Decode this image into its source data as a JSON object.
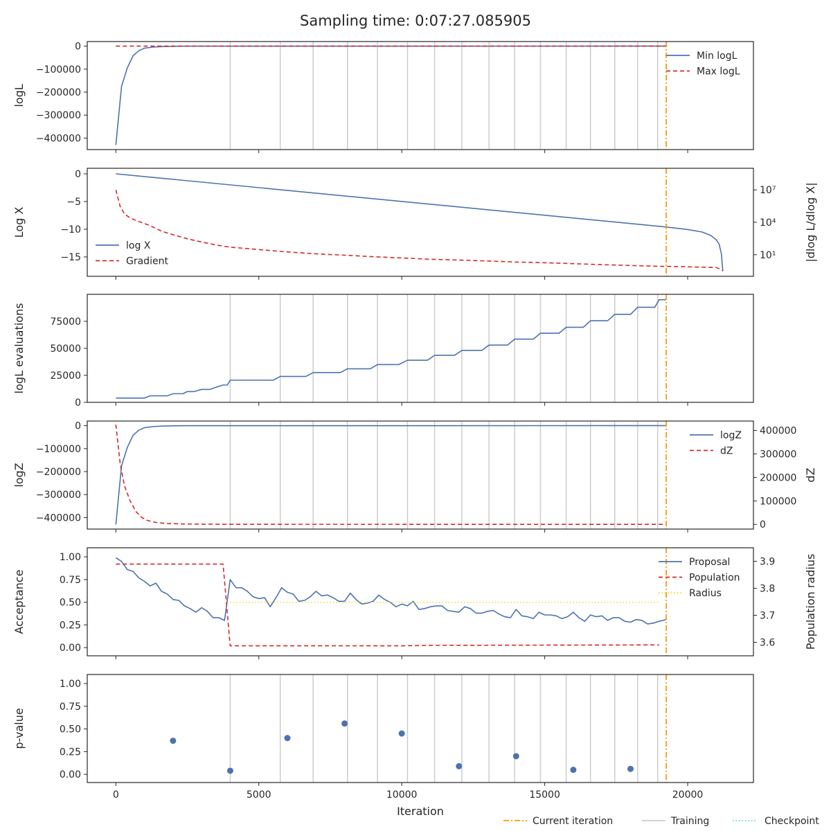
{
  "title": "Sampling time: 0:07:27.085905",
  "xlabel": "Iteration",
  "xticks": [
    0,
    5000,
    10000,
    15000,
    20000
  ],
  "xlim": [
    -1000,
    22300
  ],
  "colors": {
    "blue": "#4c72b0",
    "red": "#d62728",
    "orange": "#ff9900",
    "gray": "#cccccc",
    "cyan": "#5fd3e6",
    "yellow": "#f2d21b",
    "axis": "#262626"
  },
  "legend_bottom": {
    "current": "Current iteration",
    "training": "Training",
    "checkpoint": "Checkpoint"
  },
  "chart_data": [
    {
      "type": "line",
      "ylabel": "logL",
      "ylim": [
        -450000,
        20000
      ],
      "yticks": [
        0,
        -100000,
        -200000,
        -300000,
        -400000
      ],
      "ytick_labels": [
        "0",
        "−100000",
        "−200000",
        "−300000",
        "−400000"
      ],
      "training_lines": [
        4000,
        5750,
        6900,
        8100,
        9150,
        10200,
        11150,
        12100,
        13050,
        13950,
        14850,
        15750,
        16600,
        17450,
        18250,
        18950
      ],
      "current_iteration": 19250,
      "legend": [
        "Min logL",
        "Max logL"
      ],
      "legend_position": "top-right",
      "series": [
        {
          "name": "Min logL",
          "style": "solid",
          "x": [
            0,
            200,
            400,
            600,
            800,
            1000,
            1300,
            1600,
            2000,
            2500,
            3000,
            19250
          ],
          "y": [
            -430000,
            -175000,
            -95000,
            -42000,
            -20000,
            -9000,
            -4000,
            -2000,
            -800,
            -300,
            -100,
            0
          ]
        },
        {
          "name": "Max logL",
          "style": "dashed",
          "x": [
            0,
            19250
          ],
          "y": [
            0,
            0
          ]
        }
      ]
    },
    {
      "type": "line",
      "ylabel": "Log X",
      "ylim": [
        -18.5,
        1
      ],
      "yticks": [
        0,
        -5,
        -10,
        -15
      ],
      "ytick_labels": [
        "0",
        "−5",
        "−10",
        "−15"
      ],
      "right_ylabel": "|dlog L/dlog X|",
      "right_ylog": true,
      "right_ylim": [
        0.1,
        1000000000
      ],
      "right_yticks": [
        10,
        10000,
        10000000
      ],
      "right_ytick_labels": [
        "10¹",
        "10⁴",
        "10⁷"
      ],
      "current_iteration": 19250,
      "legend": [
        "log X",
        "Gradient"
      ],
      "legend_position": "lower-left",
      "series": [
        {
          "name": "log X",
          "style": "solid",
          "axis": "left",
          "x": [
            0,
            19250,
            20000,
            20500,
            20800,
            21000,
            21100,
            21180,
            21230
          ],
          "y": [
            0,
            -9.6,
            -10.05,
            -10.5,
            -11.1,
            -11.9,
            -12.7,
            -14.5,
            -17.6
          ]
        },
        {
          "name": "Gradient",
          "style": "dashed",
          "axis": "right",
          "x": [
            0,
            150,
            300,
            500,
            800,
            1200,
            1600,
            2000,
            2500,
            3000,
            3500,
            4000,
            5000,
            6000,
            7000,
            8000,
            9000,
            10000,
            11000,
            12000,
            13000,
            14000,
            15000,
            16000,
            17000,
            18000,
            19000,
            20000,
            21000,
            21230
          ],
          "y": [
            10000000,
            300000,
            60000,
            25000,
            12000,
            5000,
            1500,
            700,
            300,
            150,
            80,
            50,
            30,
            18,
            12,
            9,
            6.5,
            5,
            3.8,
            3.2,
            2.6,
            2.1,
            1.8,
            1.5,
            1.2,
            1.0,
            0.85,
            0.75,
            0.65,
            0.35
          ]
        }
      ]
    },
    {
      "type": "line",
      "ylabel": "logL evaluations",
      "ylim": [
        0,
        100000
      ],
      "yticks": [
        0,
        25000,
        50000,
        75000
      ],
      "ytick_labels": [
        "0",
        "25000",
        "50000",
        "75000"
      ],
      "training_lines": [
        4000,
        5750,
        6900,
        8100,
        9150,
        10200,
        11150,
        12100,
        13050,
        13950,
        14850,
        15750,
        16600,
        17450,
        18250,
        18950
      ],
      "current_iteration": 19250,
      "series": [
        {
          "name": "",
          "style": "solid",
          "x": [
            0,
            1000,
            1200,
            1800,
            2000,
            2350,
            2500,
            2750,
            3000,
            3300,
            3500,
            3750,
            3900,
            4000,
            5500,
            5750,
            6650,
            6900,
            7850,
            8100,
            8900,
            9150,
            9900,
            10200,
            10900,
            11150,
            11850,
            12100,
            12800,
            13050,
            13700,
            13950,
            14600,
            14850,
            15500,
            15750,
            16350,
            16600,
            17200,
            17450,
            18000,
            18250,
            18850,
            19000,
            19250
          ],
          "y": [
            4000,
            4000,
            6000,
            6000,
            8000,
            8000,
            10000,
            10000,
            12000,
            12000,
            14000,
            16000,
            16000,
            20500,
            20500,
            24000,
            24000,
            27500,
            27500,
            31000,
            31000,
            35000,
            35000,
            39000,
            39000,
            43500,
            43500,
            48000,
            48000,
            53000,
            53000,
            58500,
            58500,
            64000,
            64000,
            69500,
            69500,
            75500,
            75500,
            81500,
            81500,
            88000,
            88000,
            95000,
            95000
          ]
        }
      ]
    },
    {
      "type": "line",
      "ylabel": "logZ",
      "ylim": [
        -450000,
        20000
      ],
      "yticks": [
        0,
        -100000,
        -200000,
        -300000,
        -400000
      ],
      "ytick_labels": [
        "0",
        "−100000",
        "−200000",
        "−300000",
        "−400000"
      ],
      "right_ylabel": "dZ",
      "right_ylim": [
        -20000,
        440000
      ],
      "right_yticks": [
        0,
        100000,
        200000,
        300000,
        400000
      ],
      "right_ytick_labels": [
        "0",
        "100000",
        "200000",
        "300000",
        "400000"
      ],
      "training_lines": [
        4000,
        5750,
        6900,
        8100,
        9150,
        10200,
        11150,
        12100,
        13050,
        13950,
        14850,
        15750,
        16600,
        17450,
        18250,
        18950
      ],
      "current_iteration": 19250,
      "legend": [
        "logZ",
        "dZ"
      ],
      "legend_position": "top-right",
      "series": [
        {
          "name": "logZ",
          "style": "solid",
          "axis": "left",
          "x": [
            0,
            200,
            400,
            600,
            800,
            1000,
            1300,
            1600,
            2000,
            2500,
            3000,
            19250
          ],
          "y": [
            -430000,
            -175000,
            -95000,
            -42000,
            -20000,
            -9000,
            -4000,
            -2000,
            -800,
            -300,
            -100,
            0
          ]
        },
        {
          "name": "dZ",
          "style": "dashed",
          "axis": "right",
          "x": [
            0,
            150,
            300,
            500,
            700,
            900,
            1100,
            1400,
            1800,
            2300,
            3000,
            4000,
            19250
          ],
          "y": [
            425000,
            260000,
            165000,
            100000,
            55000,
            30000,
            17000,
            8000,
            4000,
            1800,
            900,
            300,
            0
          ]
        }
      ]
    },
    {
      "type": "line",
      "ylabel": "Acceptance",
      "ylim": [
        -0.09,
        1.1
      ],
      "yticks": [
        0,
        0.25,
        0.5,
        0.75,
        1.0
      ],
      "ytick_labels": [
        "0.00",
        "0.25",
        "0.50",
        "0.75",
        "1.00"
      ],
      "right_ylabel": "Population radius",
      "right_ylim": [
        3.55,
        3.95
      ],
      "right_yticks": [
        3.6,
        3.7,
        3.8,
        3.9
      ],
      "right_ytick_labels": [
        "3.6",
        "3.7",
        "3.8",
        "3.9"
      ],
      "current_iteration": 19250,
      "legend": [
        "Proposal",
        "Population",
        "Radius"
      ],
      "legend_position": "top-right",
      "series": [
        {
          "name": "Proposal",
          "style": "solid",
          "axis": "left",
          "x": [
            0,
            200,
            400,
            600,
            800,
            1000,
            1200,
            1400,
            1600,
            1800,
            2000,
            2200,
            2400,
            2600,
            2800,
            3000,
            3200,
            3400,
            3600,
            3800,
            4000,
            4200,
            4400,
            4600,
            4800,
            5000,
            5200,
            5400,
            5600,
            5800,
            6000,
            6200,
            6400,
            6600,
            6800,
            7000,
            7200,
            7400,
            7600,
            7800,
            8000,
            8200,
            8400,
            8600,
            8800,
            9000,
            9200,
            9400,
            9600,
            9800,
            10000,
            10200,
            10400,
            10600,
            10800,
            11000,
            11200,
            11400,
            11600,
            11800,
            12000,
            12200,
            12400,
            12600,
            12800,
            13000,
            13200,
            13400,
            13600,
            13800,
            14000,
            14200,
            14400,
            14600,
            14800,
            15000,
            15200,
            15400,
            15600,
            15800,
            16000,
            16200,
            16400,
            16600,
            16800,
            17000,
            17200,
            17400,
            17600,
            17800,
            18000,
            18200,
            18400,
            18600,
            18800,
            19000,
            19250
          ],
          "y": [
            0.99,
            0.95,
            0.86,
            0.84,
            0.77,
            0.73,
            0.68,
            0.71,
            0.62,
            0.59,
            0.53,
            0.52,
            0.46,
            0.43,
            0.39,
            0.44,
            0.4,
            0.33,
            0.33,
            0.3,
            0.75,
            0.66,
            0.66,
            0.62,
            0.56,
            0.54,
            0.55,
            0.45,
            0.55,
            0.66,
            0.61,
            0.59,
            0.51,
            0.52,
            0.56,
            0.62,
            0.57,
            0.58,
            0.55,
            0.51,
            0.51,
            0.6,
            0.53,
            0.48,
            0.49,
            0.51,
            0.58,
            0.53,
            0.5,
            0.45,
            0.48,
            0.46,
            0.51,
            0.42,
            0.43,
            0.45,
            0.46,
            0.46,
            0.41,
            0.4,
            0.39,
            0.45,
            0.43,
            0.38,
            0.38,
            0.4,
            0.41,
            0.37,
            0.34,
            0.33,
            0.42,
            0.35,
            0.34,
            0.32,
            0.39,
            0.36,
            0.36,
            0.35,
            0.32,
            0.34,
            0.39,
            0.33,
            0.29,
            0.36,
            0.34,
            0.35,
            0.3,
            0.33,
            0.33,
            0.29,
            0.28,
            0.31,
            0.3,
            0.26,
            0.27,
            0.29,
            0.31
          ]
        },
        {
          "name": "Population",
          "style": "dashed",
          "axis": "left",
          "x": [
            0,
            3750,
            4000,
            10000,
            11000,
            19000
          ],
          "y": [
            0.92,
            0.92,
            0.02,
            0.02,
            0.025,
            0.03
          ]
        },
        {
          "name": "Radius",
          "style": "dotted",
          "axis": "left",
          "x": [
            4000,
            19000
          ],
          "y": [
            0.5,
            0.5
          ]
        }
      ]
    },
    {
      "type": "scatter",
      "ylabel": "p-value",
      "ylim": [
        -0.09,
        1.1
      ],
      "yticks": [
        0,
        0.25,
        0.5,
        0.75,
        1.0
      ],
      "ytick_labels": [
        "0.00",
        "0.25",
        "0.50",
        "0.75",
        "1.00"
      ],
      "training_lines": [
        4000,
        5750,
        6900,
        8100,
        9150,
        10200,
        11150,
        12100,
        13050,
        13950,
        14850,
        15750,
        16600,
        17450,
        18250,
        18950
      ],
      "current_iteration": 19250,
      "series": [
        {
          "name": "",
          "x": [
            2000,
            4000,
            6000,
            8000,
            10000,
            12000,
            14000,
            16000,
            18000
          ],
          "y": [
            0.37,
            0.04,
            0.4,
            0.56,
            0.45,
            0.09,
            0.2,
            0.05,
            0.06
          ]
        }
      ]
    }
  ]
}
